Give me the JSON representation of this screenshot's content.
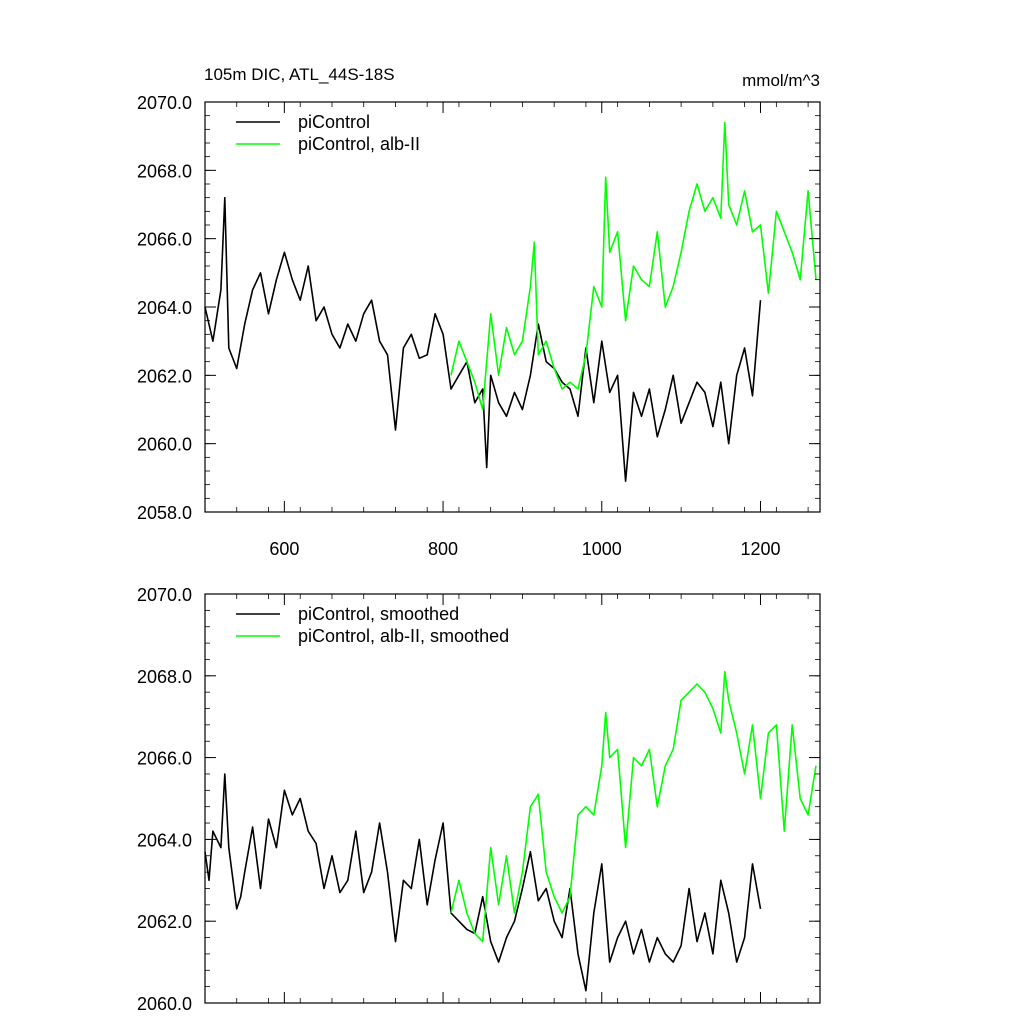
{
  "chart_data": [
    {
      "type": "line",
      "title": "105m DIC, ATL_44S-18S",
      "units": "mmol/m^3",
      "xlim": [
        500,
        1275
      ],
      "ylim": [
        2058,
        2070
      ],
      "xticks": [
        600,
        800,
        1000,
        1200
      ],
      "xtick_labels": [
        "600",
        "800",
        "1000",
        "1200"
      ],
      "yticks": [
        2058,
        2060,
        2062,
        2064,
        2066,
        2068,
        2070
      ],
      "ytick_labels": [
        "2058.0",
        "2060.0",
        "2062.0",
        "2064.0",
        "2066.0",
        "2068.0",
        "2070.0"
      ],
      "legend_position": "top-left",
      "series": [
        {
          "name": "piControl",
          "color": "#000000",
          "x": [
            500,
            510,
            520,
            525,
            530,
            540,
            550,
            560,
            570,
            580,
            590,
            600,
            610,
            620,
            630,
            640,
            650,
            660,
            670,
            680,
            690,
            700,
            710,
            720,
            730,
            740,
            750,
            760,
            770,
            780,
            790,
            800,
            810,
            820,
            830,
            840,
            850,
            855,
            860,
            870,
            880,
            890,
            900,
            910,
            920,
            930,
            940,
            950,
            960,
            970,
            980,
            990,
            1000,
            1010,
            1020,
            1030,
            1040,
            1050,
            1060,
            1070,
            1080,
            1090,
            1100,
            1110,
            1120,
            1130,
            1140,
            1150,
            1160,
            1170,
            1180,
            1190,
            1200
          ],
          "values": [
            2064.0,
            2063.0,
            2064.5,
            2067.2,
            2062.8,
            2062.2,
            2063.5,
            2064.5,
            2065.0,
            2063.8,
            2064.8,
            2065.6,
            2064.8,
            2064.2,
            2065.2,
            2063.6,
            2064.0,
            2063.2,
            2062.8,
            2063.5,
            2063.0,
            2063.8,
            2064.2,
            2063.0,
            2062.6,
            2060.4,
            2062.8,
            2063.2,
            2062.5,
            2062.6,
            2063.8,
            2063.2,
            2061.6,
            2062.0,
            2062.4,
            2061.2,
            2061.6,
            2059.3,
            2062.0,
            2061.2,
            2060.8,
            2061.5,
            2061.0,
            2062.0,
            2063.5,
            2062.4,
            2062.2,
            2061.8,
            2061.6,
            2060.8,
            2062.8,
            2061.2,
            2063.0,
            2061.5,
            2062.0,
            2058.9,
            2061.5,
            2060.8,
            2061.6,
            2060.2,
            2061.0,
            2062.0,
            2060.6,
            2061.2,
            2061.8,
            2061.5,
            2060.5,
            2061.8,
            2060.0,
            2062.0,
            2062.8,
            2061.4,
            2064.2
          ]
        },
        {
          "name": "piControl, alb-II",
          "color": "#00ff00",
          "x": [
            810,
            820,
            830,
            840,
            850,
            860,
            870,
            880,
            890,
            900,
            910,
            915,
            920,
            930,
            940,
            950,
            960,
            970,
            980,
            990,
            1000,
            1005,
            1010,
            1020,
            1030,
            1040,
            1050,
            1060,
            1070,
            1080,
            1090,
            1100,
            1110,
            1120,
            1130,
            1140,
            1150,
            1155,
            1160,
            1170,
            1180,
            1190,
            1200,
            1210,
            1220,
            1230,
            1240,
            1250,
            1260,
            1270
          ],
          "values": [
            2062.0,
            2063.0,
            2062.4,
            2061.8,
            2061.0,
            2063.8,
            2062.0,
            2063.4,
            2062.6,
            2063.0,
            2064.6,
            2065.9,
            2062.6,
            2063.0,
            2062.2,
            2061.6,
            2061.8,
            2061.6,
            2062.6,
            2064.6,
            2064.0,
            2067.8,
            2065.6,
            2066.2,
            2063.6,
            2065.2,
            2064.8,
            2064.6,
            2066.2,
            2064.0,
            2064.6,
            2065.6,
            2066.8,
            2067.6,
            2066.8,
            2067.2,
            2066.6,
            2069.4,
            2067.0,
            2066.4,
            2067.4,
            2066.2,
            2066.4,
            2064.4,
            2066.8,
            2066.2,
            2065.6,
            2064.8,
            2067.4,
            2064.8
          ]
        }
      ]
    },
    {
      "type": "line",
      "title": "",
      "xlim": [
        500,
        1275
      ],
      "ylim": [
        2060,
        2070
      ],
      "xticks": [
        600,
        800,
        1000,
        1200
      ],
      "yticks": [
        2060,
        2062,
        2064,
        2066,
        2068,
        2070
      ],
      "ytick_labels": [
        "2060.0",
        "2062.0",
        "2064.0",
        "2066.0",
        "2068.0",
        "2070.0"
      ],
      "legend_position": "top-left",
      "series": [
        {
          "name": "piControl, smoothed",
          "color": "#000000",
          "x": [
            500,
            505,
            510,
            520,
            525,
            530,
            540,
            545,
            550,
            560,
            570,
            580,
            590,
            600,
            610,
            620,
            630,
            640,
            650,
            660,
            670,
            680,
            690,
            700,
            710,
            720,
            730,
            740,
            750,
            760,
            770,
            780,
            790,
            800,
            810,
            820,
            830,
            840,
            850,
            860,
            870,
            880,
            890,
            900,
            910,
            920,
            930,
            940,
            950,
            960,
            970,
            980,
            990,
            1000,
            1010,
            1020,
            1030,
            1040,
            1050,
            1060,
            1070,
            1080,
            1090,
            1100,
            1110,
            1120,
            1130,
            1140,
            1150,
            1160,
            1170,
            1180,
            1190,
            1200
          ],
          "values": [
            2063.7,
            2063.0,
            2064.2,
            2063.8,
            2065.6,
            2063.8,
            2062.3,
            2062.6,
            2063.2,
            2064.3,
            2062.8,
            2064.5,
            2063.8,
            2065.2,
            2064.6,
            2065.0,
            2064.2,
            2063.9,
            2062.8,
            2063.6,
            2062.7,
            2063.0,
            2064.2,
            2062.7,
            2063.2,
            2064.4,
            2063.2,
            2061.5,
            2063.0,
            2062.8,
            2064.0,
            2062.4,
            2063.5,
            2064.4,
            2062.2,
            2062.0,
            2061.8,
            2061.7,
            2062.6,
            2061.5,
            2061.0,
            2061.6,
            2062.0,
            2062.8,
            2063.7,
            2062.5,
            2062.8,
            2062.0,
            2061.6,
            2062.8,
            2061.2,
            2060.3,
            2062.2,
            2063.4,
            2061.0,
            2061.6,
            2062.0,
            2061.2,
            2061.8,
            2061.0,
            2061.6,
            2061.2,
            2061.0,
            2061.4,
            2062.8,
            2061.5,
            2062.2,
            2061.2,
            2063.0,
            2062.2,
            2061.0,
            2061.6,
            2063.4,
            2062.3
          ]
        },
        {
          "name": "piControl, alb-II, smoothed",
          "color": "#00ff00",
          "x": [
            810,
            820,
            830,
            840,
            850,
            860,
            870,
            880,
            890,
            900,
            910,
            920,
            930,
            940,
            950,
            960,
            970,
            980,
            990,
            1000,
            1005,
            1010,
            1020,
            1030,
            1040,
            1050,
            1060,
            1070,
            1080,
            1090,
            1100,
            1110,
            1120,
            1130,
            1140,
            1150,
            1155,
            1160,
            1170,
            1180,
            1190,
            1200,
            1210,
            1220,
            1230,
            1240,
            1250,
            1260,
            1270
          ],
          "values": [
            2062.2,
            2063.0,
            2062.2,
            2061.7,
            2061.5,
            2063.8,
            2062.4,
            2063.6,
            2062.2,
            2063.2,
            2064.8,
            2065.1,
            2063.2,
            2062.6,
            2062.2,
            2062.6,
            2064.6,
            2064.8,
            2064.6,
            2065.8,
            2067.1,
            2066.0,
            2066.2,
            2063.8,
            2066.0,
            2065.8,
            2066.2,
            2064.8,
            2065.8,
            2066.2,
            2067.4,
            2067.6,
            2067.8,
            2067.6,
            2067.2,
            2066.6,
            2068.1,
            2067.4,
            2066.6,
            2065.6,
            2066.8,
            2065.0,
            2066.6,
            2066.8,
            2064.2,
            2066.8,
            2065.0,
            2064.6,
            2065.8
          ]
        }
      ]
    }
  ]
}
